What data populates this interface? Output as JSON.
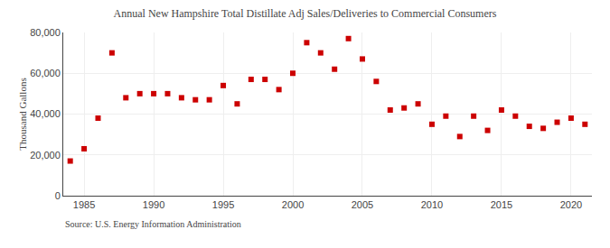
{
  "chart_data": {
    "type": "scatter",
    "title": "Annual New Hampshire Total Distillate Adj Sales/Deliveries to Commercial Consumers",
    "ylabel": "Thousand Gallons",
    "annotations": [
      "Source: U.S. Energy Information Administration"
    ],
    "x": [
      1984,
      1985,
      1986,
      1987,
      1988,
      1989,
      1990,
      1991,
      1992,
      1993,
      1994,
      1995,
      1996,
      1997,
      1998,
      1999,
      2000,
      2001,
      2002,
      2003,
      2004,
      2005,
      2006,
      2007,
      2008,
      2009,
      2010,
      2011,
      2012,
      2013,
      2014,
      2015,
      2016,
      2017,
      2018,
      2019,
      2020,
      2021
    ],
    "values": [
      17000,
      23000,
      38000,
      70000,
      48000,
      50000,
      50000,
      50000,
      48000,
      47000,
      47000,
      54000,
      45000,
      57000,
      57000,
      52000,
      60000,
      75000,
      70000,
      62000,
      77000,
      67000,
      56000,
      42000,
      43000,
      45000,
      35000,
      39000,
      29000,
      39000,
      32000,
      42000,
      39000,
      34000,
      33000,
      36000,
      38000,
      35000
    ],
    "color": "#cc0000",
    "marker": "square",
    "xlim": [
      1983.5,
      2021.5
    ],
    "ylim": [
      0,
      80000
    ],
    "xticks": [
      1985,
      1990,
      1995,
      2000,
      2005,
      2010,
      2015,
      2020
    ],
    "yticks": [
      0,
      {
        "value": 20000,
        "label": "20,000"
      },
      {
        "value": 40000,
        "label": "40,000"
      },
      {
        "value": 60000,
        "label": "60,000"
      },
      {
        "value": 80000,
        "label": "80,000"
      }
    ],
    "grid": true
  }
}
